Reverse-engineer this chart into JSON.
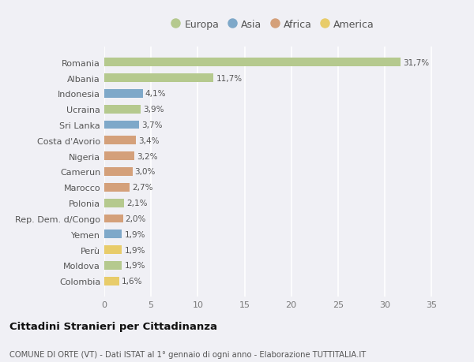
{
  "countries": [
    "Romania",
    "Albania",
    "Indonesia",
    "Ucraina",
    "Sri Lanka",
    "Costa d'Avorio",
    "Nigeria",
    "Camerun",
    "Marocco",
    "Polonia",
    "Rep. Dem. d/Congo",
    "Yemen",
    "Perù",
    "Moldova",
    "Colombia"
  ],
  "values": [
    31.7,
    11.7,
    4.1,
    3.9,
    3.7,
    3.4,
    3.2,
    3.0,
    2.7,
    2.1,
    2.0,
    1.9,
    1.9,
    1.9,
    1.6
  ],
  "labels": [
    "31,7%",
    "11,7%",
    "4,1%",
    "3,9%",
    "3,7%",
    "3,4%",
    "3,2%",
    "3,0%",
    "2,7%",
    "2,1%",
    "2,0%",
    "1,9%",
    "1,9%",
    "1,9%",
    "1,6%"
  ],
  "continents": [
    "Europa",
    "Europa",
    "Asia",
    "Europa",
    "Asia",
    "Africa",
    "Africa",
    "Africa",
    "Africa",
    "Europa",
    "Africa",
    "Asia",
    "America",
    "Europa",
    "America"
  ],
  "colors": {
    "Europa": "#b5c98e",
    "Asia": "#7ea8c9",
    "Africa": "#d4a07a",
    "America": "#e8cc6a"
  },
  "legend_order": [
    "Europa",
    "Asia",
    "Africa",
    "America"
  ],
  "title": "Cittadini Stranieri per Cittadinanza",
  "subtitle": "COMUNE DI ORTE (VT) - Dati ISTAT al 1° gennaio di ogni anno - Elaborazione TUTTITALIA.IT",
  "xlim": [
    0,
    36
  ],
  "xticks": [
    0,
    5,
    10,
    15,
    20,
    25,
    30,
    35
  ],
  "bg_color": "#f0f0f5",
  "plot_bg_color": "#f0f0f5",
  "grid_color": "#ffffff",
  "label_color": "#555555",
  "tick_color": "#777777"
}
